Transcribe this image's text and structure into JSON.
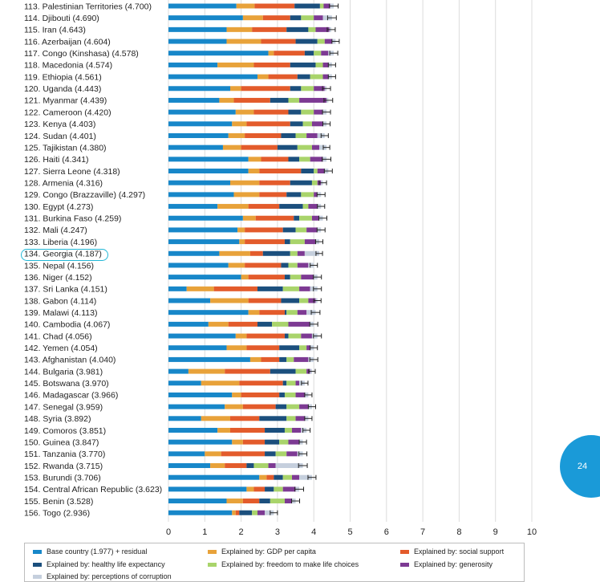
{
  "chart_data": {
    "type": "bar",
    "stacked": true,
    "orientation": "horizontal",
    "xlim": [
      0,
      10
    ],
    "xticks": [
      "0",
      "1",
      "2",
      "3",
      "4",
      "5",
      "6",
      "7",
      "8",
      "9",
      "10"
    ],
    "categories": [
      "113. Palestinian Territories (4.700)",
      "114. Djibouti (4.690)",
      "115. Iran (4.643)",
      "116. Azerbaijan (4.604)",
      "117. Congo (Kinshasa) (4.578)",
      "118. Macedonia (4.574)",
      "119. Ethiopia (4.561)",
      "120. Uganda (4.443)",
      "121. Myanmar (4.439)",
      "122. Cameroon (4.420)",
      "123. Kenya (4.403)",
      "124. Sudan (4.401)",
      "125. Tajikistan (4.380)",
      "126. Haiti (4.341)",
      "127. Sierra Leone (4.318)",
      "128. Armenia (4.316)",
      "129. Congo (Brazzaville) (4.297)",
      "130. Egypt (4.273)",
      "131. Burkina Faso (4.259)",
      "132. Mali (4.247)",
      "133. Liberia (4.196)",
      "134. Georgia (4.187)",
      "135. Nepal (4.156)",
      "136. Niger (4.152)",
      "137. Sri Lanka (4.151)",
      "138. Gabon (4.114)",
      "139. Malawi (4.113)",
      "140. Cambodia (4.067)",
      "141. Chad (4.056)",
      "142. Yemen (4.054)",
      "143. Afghanistan (4.040)",
      "144. Bulgaria (3.981)",
      "145. Botswana (3.970)",
      "146. Madagascar (3.966)",
      "147. Senegal (3.959)",
      "148. Syria (3.892)",
      "149. Comoros (3.851)",
      "150. Guinea (3.847)",
      "151. Tanzania (3.770)",
      "152. Rwanda (3.715)",
      "153. Burundi (3.706)",
      "154. Central African Republic (3.623)",
      "155. Benin (3.528)",
      "156. Togo (2.936)"
    ],
    "series": [
      {
        "name": "Base country (1.977) + residual",
        "color": "#1787c9",
        "values": [
          1.87,
          2.05,
          1.6,
          1.6,
          2.75,
          1.35,
          2.45,
          1.7,
          1.4,
          1.85,
          1.75,
          1.65,
          1.5,
          2.2,
          2.2,
          1.7,
          1.8,
          1.35,
          2.05,
          1.9,
          1.95,
          1.4,
          1.65,
          2.0,
          0.5,
          1.15,
          2.2,
          1.1,
          1.85,
          1.6,
          2.25,
          0.55,
          0.9,
          1.75,
          1.55,
          0.9,
          1.35,
          1.75,
          1.0,
          1.15,
          2.5,
          2.15,
          1.6,
          1.75
        ]
      },
      {
        "name": "Explained by: GDP per capita",
        "color": "#e8a23a",
        "values": [
          0.5,
          0.55,
          0.7,
          0.95,
          0.15,
          1.0,
          0.3,
          0.3,
          0.4,
          0.5,
          0.4,
          0.45,
          0.5,
          0.35,
          0.3,
          0.8,
          0.7,
          0.85,
          0.35,
          0.2,
          0.15,
          0.85,
          0.45,
          0.2,
          0.75,
          1.05,
          0.3,
          0.55,
          0.3,
          0.55,
          0.3,
          1.0,
          1.05,
          0.25,
          0.5,
          0.8,
          0.35,
          0.3,
          0.45,
          0.4,
          0.2,
          0.2,
          0.45,
          0.1
        ]
      },
      {
        "name": "Explained by: social support",
        "color": "#e35b2b",
        "values": [
          1.1,
          0.75,
          0.95,
          0.95,
          0.85,
          1.0,
          0.8,
          1.35,
          1.0,
          0.95,
          1.2,
          1.0,
          1.0,
          0.75,
          1.15,
          0.85,
          0.75,
          0.85,
          1.05,
          1.05,
          1.1,
          0.35,
          1.0,
          1.0,
          1.2,
          0.9,
          0.7,
          0.8,
          1.05,
          0.9,
          0.5,
          1.25,
          1.2,
          1.05,
          0.9,
          0.8,
          0.95,
          0.6,
          1.2,
          0.6,
          0.2,
          0.3,
          0.45,
          0.1
        ]
      },
      {
        "name": "Explained by: healthy life expectancy",
        "color": "#1b4f7d",
        "values": [
          0.7,
          0.3,
          0.6,
          0.6,
          0.25,
          0.7,
          0.35,
          0.3,
          0.5,
          0.35,
          0.35,
          0.4,
          0.55,
          0.3,
          0.35,
          0.6,
          0.4,
          0.65,
          0.15,
          0.35,
          0.15,
          0.75,
          0.2,
          0.15,
          0.7,
          0.5,
          0.05,
          0.4,
          0.1,
          0.55,
          0.2,
          0.7,
          0.1,
          0.15,
          0.3,
          0.75,
          0.55,
          0.4,
          0.3,
          0.2,
          0.25,
          0.25,
          0.3,
          0.35
        ]
      },
      {
        "name": "Explained by: freedom to make life choices",
        "color": "#a9d46b",
        "values": [
          0.1,
          0.35,
          0.2,
          0.2,
          0.2,
          0.2,
          0.35,
          0.35,
          0.3,
          0.35,
          0.25,
          0.3,
          0.4,
          0.3,
          0.1,
          0.15,
          0.35,
          0.15,
          0.35,
          0.3,
          0.4,
          0.2,
          0.25,
          0.3,
          0.45,
          0.25,
          0.3,
          0.45,
          0.35,
          0.2,
          0.2,
          0.3,
          0.25,
          0.3,
          0.35,
          0.25,
          0.2,
          0.25,
          0.3,
          0.4,
          0.25,
          0.25,
          0.4,
          0.15
        ]
      },
      {
        "name": "Explained by: generosity",
        "color": "#7d3a93",
        "values": [
          0.18,
          0.25,
          0.38,
          0.2,
          0.2,
          0.15,
          0.15,
          0.3,
          0.75,
          0.25,
          0.3,
          0.3,
          0.2,
          0.35,
          0.2,
          0.1,
          0.1,
          0.25,
          0.2,
          0.3,
          0.3,
          0.2,
          0.3,
          0.35,
          0.3,
          0.2,
          0.25,
          0.6,
          0.3,
          0.1,
          0.4,
          0.1,
          0.1,
          0.25,
          0.25,
          0.25,
          0.25,
          0.3,
          0.3,
          0.2,
          0.2,
          0.35,
          0.2,
          0.2
        ]
      },
      {
        "name": "Explained by: perceptions of corruption",
        "color": "#c5cfdd",
        "values": [
          0.1,
          0.25,
          0.05,
          0.1,
          0.15,
          0.1,
          0.1,
          0.05,
          0.05,
          0.1,
          0.1,
          0.2,
          0.2,
          0.1,
          0.1,
          0.05,
          0.1,
          0.1,
          0.1,
          0.1,
          0.1,
          0.4,
          0.15,
          0.1,
          0.2,
          0.05,
          0.25,
          0.1,
          0.15,
          0.1,
          0.15,
          0.05,
          0.15,
          0.1,
          0.1,
          0.1,
          0.15,
          0.1,
          0.15,
          0.75,
          0.35,
          0.1,
          0.1,
          0.25
        ]
      }
    ],
    "errors": [
      0.12,
      0.12,
      0.11,
      0.1,
      0.11,
      0.1,
      0.1,
      0.11,
      0.12,
      0.11,
      0.1,
      0.1,
      0.09,
      0.12,
      0.11,
      0.1,
      0.11,
      0.1,
      0.11,
      0.11,
      0.1,
      0.09,
      0.1,
      0.11,
      0.11,
      0.1,
      0.12,
      0.11,
      0.11,
      0.1,
      0.11,
      0.09,
      0.09,
      0.1,
      0.1,
      0.1,
      0.1,
      0.1,
      0.11,
      0.12,
      0.11,
      0.12,
      0.11,
      0.1
    ],
    "highlight_category": "134. Georgia (4.187)"
  },
  "legend": {
    "items": [
      "Base country (1.977) + residual",
      "Explained by: GDP per capita",
      "Explained by: social support",
      "Explained by: healthy life expectancy",
      "Explained by: freedom to make life choices",
      "Explained by: generosity",
      "Explained by: perceptions of corruption"
    ]
  },
  "page": {
    "number": "24"
  }
}
